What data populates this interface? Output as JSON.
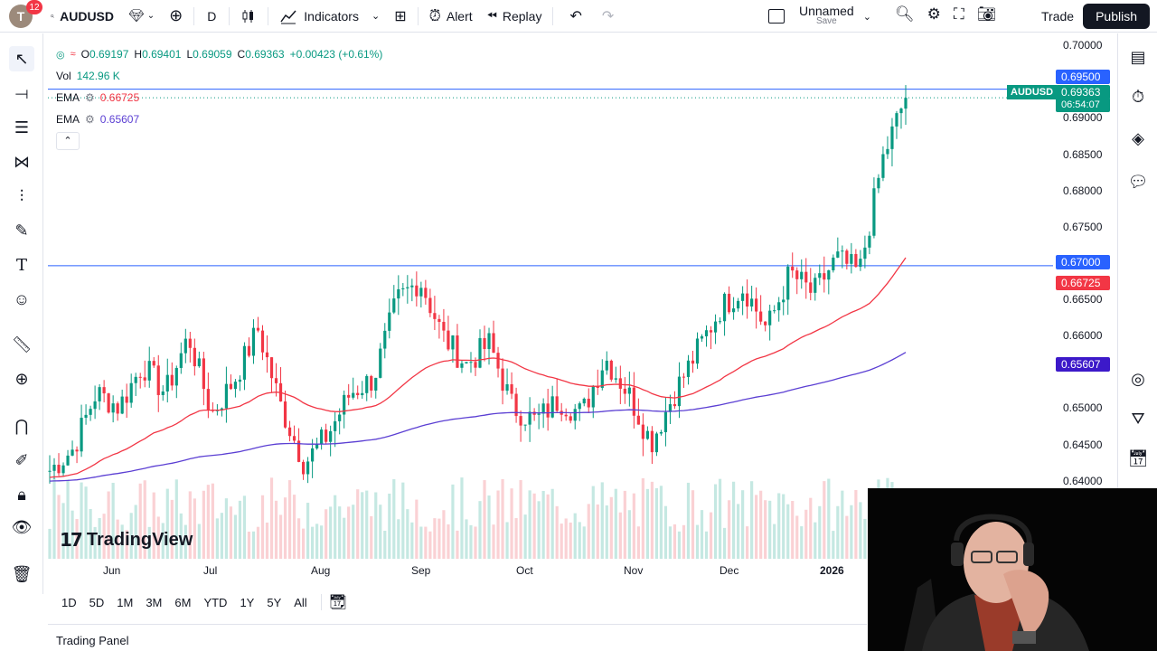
{
  "topbar": {
    "avatar_letter": "T",
    "notification_count": "12",
    "symbol": "AUDUSD",
    "interval": "D",
    "indicators_label": "Indicators",
    "alert_label": "Alert",
    "replay_label": "Replay",
    "layout_name": "Unnamed",
    "layout_status": "Save",
    "trade_label": "Trade",
    "publish_label": "Publish"
  },
  "legend": {
    "open_key": "O",
    "open": "0.69197",
    "high_key": "H",
    "high": "0.69401",
    "low_key": "L",
    "low": "0.69059",
    "close_key": "C",
    "close": "0.69363",
    "change": "+0.00423 (+0.61%)",
    "vol_label": "Vol",
    "vol_value": "142.96 K",
    "ema1_label": "EMA",
    "ema1_value": "0.66725",
    "ema2_label": "EMA",
    "ema2_value": "0.65607"
  },
  "price_axis": {
    "ticks": [
      "0.70000",
      "0.69000",
      "0.68500",
      "0.68000",
      "0.67500",
      "0.66500",
      "0.66000",
      "0.65000",
      "0.64500",
      "0.64000"
    ],
    "tag_6950": "0.69500",
    "tag_price": "0.69363",
    "tag_countdown": "06:54:07",
    "symbol_tag": "AUDUSD",
    "tag_6700": "0.67000",
    "tag_ema1": "0.66725",
    "tag_ema2": "0.65607"
  },
  "time_axis": [
    "Jun",
    "Jul",
    "Aug",
    "Sep",
    "Oct",
    "Nov",
    "Dec",
    "2026"
  ],
  "range_buttons": [
    "1D",
    "5D",
    "1M",
    "3M",
    "6M",
    "YTD",
    "1Y",
    "5Y",
    "All"
  ],
  "watermark": "TradingView",
  "trading_panel_label": "Trading Panel",
  "colors": {
    "up": "#089981",
    "down": "#f23645",
    "ema_fast": "#f23645",
    "ema_slow": "#5b3fd3",
    "hline": "#2962ff"
  },
  "chart_data": {
    "type": "candlestick",
    "symbol": "AUDUSD",
    "interval": "D",
    "ylim": [
      0.6385,
      0.7025
    ],
    "horizontal_lines": [
      0.695,
      0.67
    ],
    "x": [
      "Jun",
      "Jul",
      "Aug",
      "Sep",
      "Oct",
      "Nov",
      "Dec",
      "2026"
    ],
    "close_path": [
      0.641,
      0.644,
      0.652,
      0.65,
      0.656,
      0.652,
      0.66,
      0.649,
      0.654,
      0.661,
      0.65,
      0.642,
      0.646,
      0.652,
      0.654,
      0.665,
      0.668,
      0.66,
      0.656,
      0.659,
      0.65,
      0.648,
      0.651,
      0.649,
      0.657,
      0.652,
      0.645,
      0.652,
      0.658,
      0.664,
      0.667,
      0.661,
      0.669,
      0.666,
      0.671,
      0.669,
      0.685,
      0.694
    ]
  }
}
